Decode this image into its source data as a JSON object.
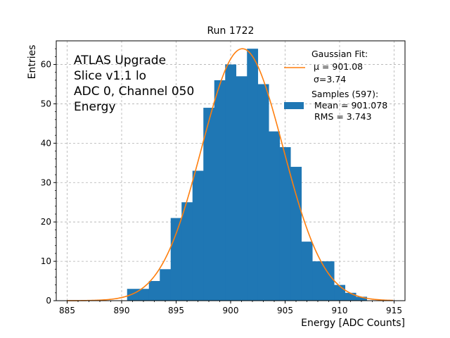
{
  "chart_data": {
    "type": "bar",
    "title": "Run 1722",
    "xlabel": "Energy [ADC Counts]",
    "ylabel": "Entries",
    "xlim": [
      884,
      916
    ],
    "ylim": [
      0,
      66
    ],
    "xticks": [
      885,
      890,
      895,
      900,
      905,
      910,
      915
    ],
    "yticks": [
      0,
      10,
      20,
      30,
      40,
      50,
      60
    ],
    "grid": true,
    "legend_position": "top-right",
    "annotation": [
      "ATLAS Upgrade",
      "Slice v1.1 lo",
      "ADC 0, Channel 050",
      "Energy"
    ],
    "bar_color": "#1f77b4",
    "fit_color": "#ff7f0e",
    "histogram": {
      "bin_width": 1,
      "bin_edges_start": 890.5,
      "counts": [
        3,
        3,
        5,
        8,
        21,
        25,
        33,
        49,
        56,
        60,
        57,
        64,
        55,
        43,
        39,
        34,
        15,
        10,
        10,
        4,
        2,
        1
      ]
    },
    "fit": {
      "mu": 901.08,
      "sigma": 3.74,
      "amplitude": 64
    },
    "legend": {
      "fit_label": [
        "Gaussian Fit:",
        "$\\mu$ = 901.08",
        "$\\sigma$=3.74"
      ],
      "fit_label_display": [
        "Gaussian Fit:",
        "μ = 901.08",
        "σ=3.74"
      ],
      "samples_label": [
        "Samples (597):",
        " Mean = 901.078",
        " RMS = 3.743"
      ]
    }
  }
}
